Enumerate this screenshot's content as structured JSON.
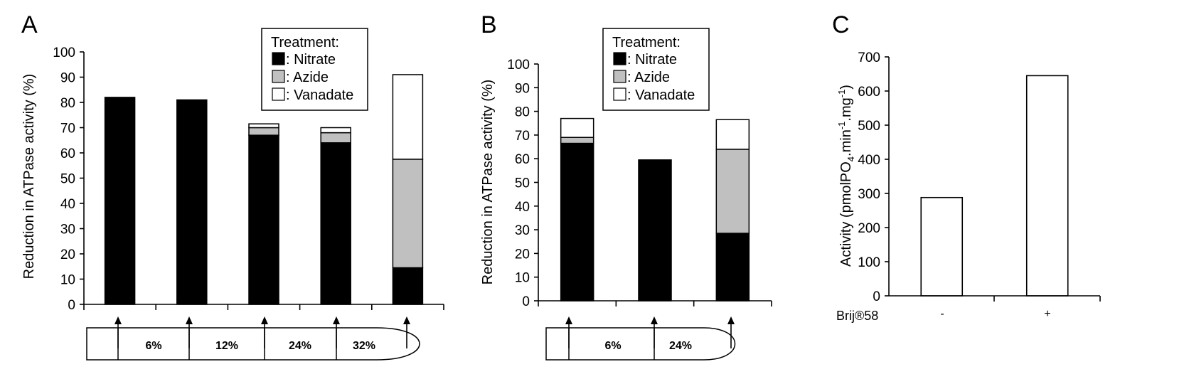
{
  "panels": {
    "A": {
      "letter": "A",
      "ylabel": "Reduction in ATPase activity (%)",
      "ylim": [
        0,
        100
      ],
      "yticks": [
        "0",
        "10",
        "20",
        "30",
        "40",
        "50",
        "60",
        "70",
        "80",
        "90",
        "100"
      ],
      "legend": {
        "title": "Treatment:",
        "items": [
          ": Nitrate",
          ": Azide",
          ": Vanadate"
        ]
      },
      "gradient_labels": [
        "6%",
        "12%",
        "24%",
        "32%"
      ]
    },
    "B": {
      "letter": "B",
      "ylabel": "Reduction in ATPase activity (%)",
      "ylim": [
        0,
        100
      ],
      "yticks": [
        "0",
        "10",
        "20",
        "30",
        "40",
        "50",
        "60",
        "70",
        "80",
        "90",
        "100"
      ],
      "legend": {
        "title": "Treatment:",
        "items": [
          ": Nitrate",
          ": Azide",
          ": Vanadate"
        ]
      },
      "gradient_labels": [
        "6%",
        "24%"
      ]
    },
    "C": {
      "letter": "C",
      "ylabel_main": "Activity (pmolPO",
      "ylabel_sub": "4",
      "ylabel_mid": ".min",
      "ylabel_sup1": "-1",
      "ylabel_mid2": ".mg",
      "ylabel_sup2": "-1",
      "ylabel_end": ")",
      "ylim": [
        0,
        700
      ],
      "yticks": [
        "0",
        "100",
        "200",
        "300",
        "400",
        "500",
        "600",
        "700"
      ],
      "x_title": "Brij®58",
      "categories": [
        "-",
        "+"
      ]
    }
  },
  "colors": {
    "nitrate": "#000000",
    "azide": "#c0c0c0",
    "vanadate": "#ffffff"
  },
  "chart_data": [
    {
      "type": "bar",
      "panel": "A",
      "stacked": true,
      "ylabel": "Reduction in ATPase activity (%)",
      "ylim": [
        0,
        100
      ],
      "categories": [
        "",
        "",
        "",
        "",
        ""
      ],
      "series": [
        {
          "name": "Nitrate",
          "values": [
            82,
            81,
            67,
            64,
            14.5
          ]
        },
        {
          "name": "Azide",
          "values": [
            0,
            0,
            3,
            4,
            43
          ]
        },
        {
          "name": "Vanadate",
          "values": [
            0,
            0,
            1.5,
            2,
            33.5
          ]
        }
      ]
    },
    {
      "type": "bar",
      "panel": "B",
      "stacked": true,
      "ylabel": "Reduction in ATPase activity (%)",
      "ylim": [
        0,
        100
      ],
      "categories": [
        "",
        "",
        ""
      ],
      "series": [
        {
          "name": "Nitrate",
          "values": [
            66.5,
            59.5,
            28.5
          ]
        },
        {
          "name": "Azide",
          "values": [
            2.5,
            0,
            35.5
          ]
        },
        {
          "name": "Vanadate",
          "values": [
            8,
            0,
            12.5
          ]
        }
      ]
    },
    {
      "type": "bar",
      "panel": "C",
      "ylim": [
        0,
        700
      ],
      "categories": [
        "-",
        "+"
      ],
      "values": [
        288,
        645
      ]
    }
  ]
}
